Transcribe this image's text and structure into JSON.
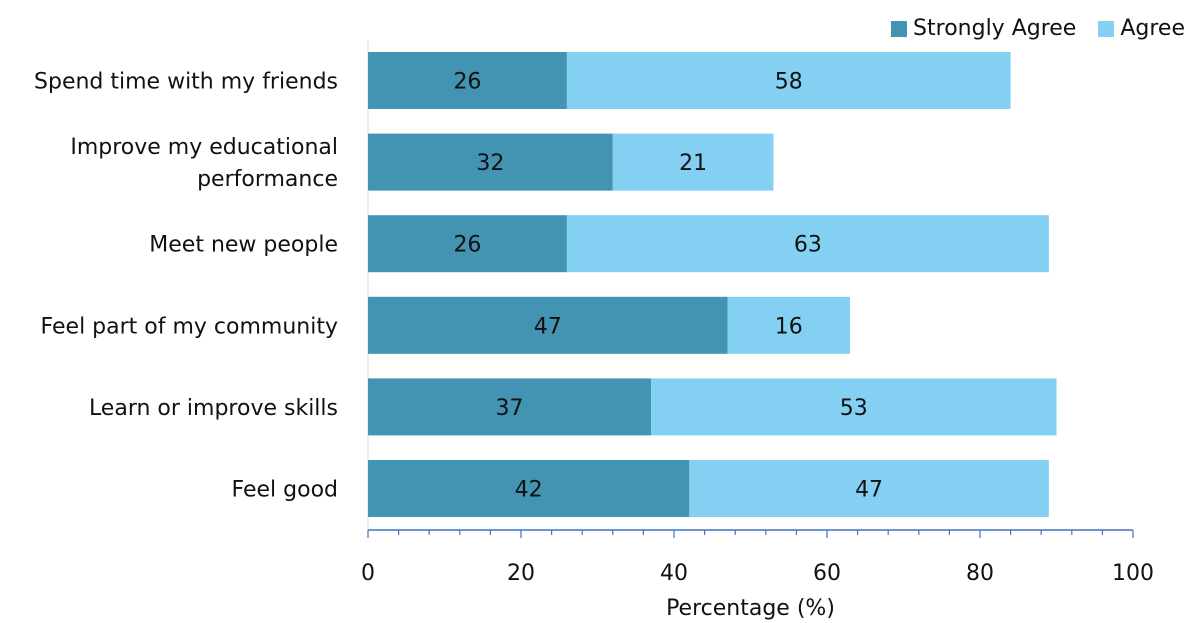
{
  "chart_data": {
    "type": "bar",
    "orientation": "horizontal",
    "stacked": true,
    "title": "",
    "xlabel": "Percentage (%)",
    "ylabel": "",
    "xlim": [
      0,
      100
    ],
    "x_ticks": [
      0,
      20,
      40,
      60,
      80,
      100
    ],
    "grid": false,
    "legend_position": "top-right",
    "categories": [
      "Spend time with my friends",
      "Improve my educational performance",
      "Meet new people",
      "Feel part of my community",
      "Learn or improve skills",
      "Feel good"
    ],
    "category_lines": [
      [
        "Spend time with my friends"
      ],
      [
        "Improve my educational",
        "performance"
      ],
      [
        "Meet new people"
      ],
      [
        "Feel part of my community"
      ],
      [
        "Learn or improve skills"
      ],
      [
        "Feel good"
      ]
    ],
    "series": [
      {
        "name": "Strongly Agree",
        "color": "#4393b2",
        "values": [
          26,
          32,
          26,
          47,
          37,
          42
        ]
      },
      {
        "name": "Agree",
        "color": "#83d0f2",
        "values": [
          58,
          21,
          63,
          16,
          53,
          47
        ]
      }
    ]
  }
}
